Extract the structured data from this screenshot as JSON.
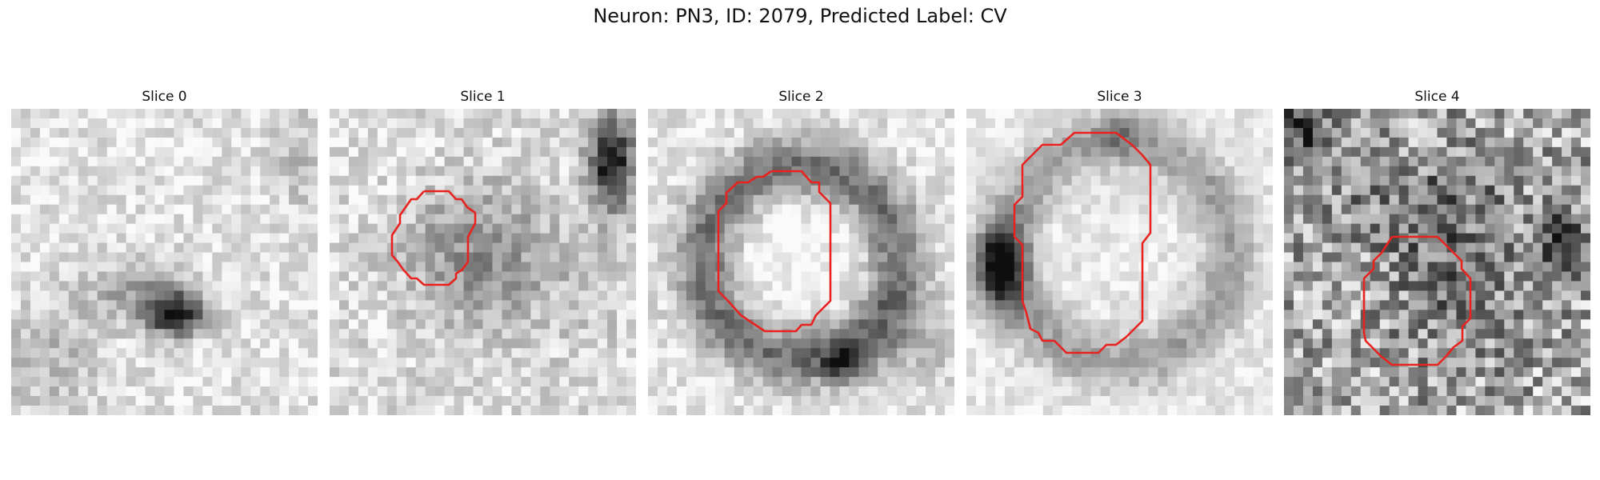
{
  "figure": {
    "title": "Neuron: PN3, ID: 2079, Predicted Label: CV"
  },
  "panels": [
    {
      "title": "Slice 0",
      "contour": false
    },
    {
      "title": "Slice 1",
      "contour": true
    },
    {
      "title": "Slice 2",
      "contour": true
    },
    {
      "title": "Slice 3",
      "contour": true
    },
    {
      "title": "Slice 4",
      "contour": true
    }
  ],
  "colors": {
    "contour": "#e8231f",
    "colormap": "grayscale"
  }
}
